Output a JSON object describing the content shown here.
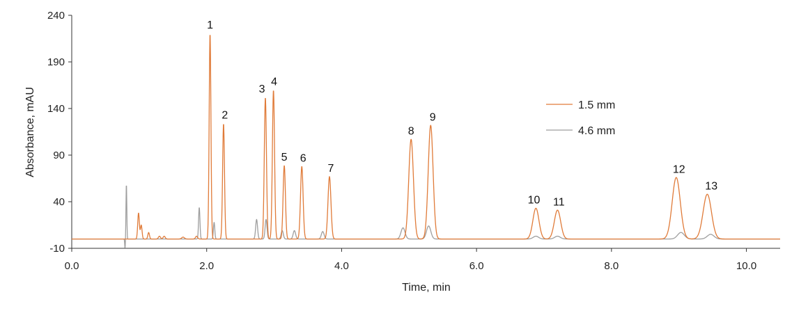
{
  "chart_data": {
    "type": "line",
    "xlabel": "Time, min",
    "ylabel": "Absorbance, mAU",
    "xlim": [
      0,
      10.5
    ],
    "ylim": [
      -10,
      240
    ],
    "x_ticks": [
      0,
      2,
      4,
      6,
      8,
      10
    ],
    "x_tick_labels": [
      "0.0",
      "2.0",
      "4.0",
      "6.0",
      "8.0",
      "10.0"
    ],
    "y_ticks": [
      -10,
      40,
      90,
      140,
      190,
      240
    ],
    "y_tick_labels": [
      "-10",
      "40",
      "90",
      "140",
      "190",
      "240"
    ],
    "grid": false,
    "legend_position": "right",
    "series": [
      {
        "name": "1.5 mm",
        "color": "#e07b39",
        "baseline": 0,
        "peaks": [
          {
            "t": 0.99,
            "h": 28,
            "w": 0.012
          },
          {
            "t": 1.03,
            "h": 15,
            "w": 0.012
          },
          {
            "t": 1.14,
            "h": 7,
            "w": 0.012
          },
          {
            "t": 1.3,
            "h": 3,
            "w": 0.015
          },
          {
            "t": 1.37,
            "h": 3,
            "w": 0.015
          },
          {
            "t": 1.65,
            "h": 2,
            "w": 0.02
          },
          {
            "t": 1.85,
            "h": 3,
            "w": 0.015
          },
          {
            "t": 2.05,
            "h": 221,
            "w": 0.013
          },
          {
            "t": 2.25,
            "h": 124,
            "w": 0.014
          },
          {
            "t": 2.87,
            "h": 152,
            "w": 0.016
          },
          {
            "t": 2.99,
            "h": 160,
            "w": 0.016
          },
          {
            "t": 3.15,
            "h": 79,
            "w": 0.017
          },
          {
            "t": 3.41,
            "h": 78,
            "w": 0.019
          },
          {
            "t": 3.82,
            "h": 67,
            "w": 0.022
          },
          {
            "t": 5.03,
            "h": 107,
            "w": 0.035
          },
          {
            "t": 5.32,
            "h": 122,
            "w": 0.036
          },
          {
            "t": 6.88,
            "h": 33,
            "w": 0.045
          },
          {
            "t": 7.2,
            "h": 31,
            "w": 0.047
          },
          {
            "t": 8.96,
            "h": 66,
            "w": 0.06
          },
          {
            "t": 9.42,
            "h": 48,
            "w": 0.062
          }
        ]
      },
      {
        "name": "4.6 mm",
        "color": "#9e9e9e",
        "baseline": 0,
        "peaks": [
          {
            "t": 0.81,
            "h": 60,
            "w": 0.006
          },
          {
            "t": 0.79,
            "h": -10,
            "w": 0.005
          },
          {
            "t": 1.89,
            "h": 34,
            "w": 0.01
          },
          {
            "t": 2.11,
            "h": 18,
            "w": 0.01
          },
          {
            "t": 2.74,
            "h": 21,
            "w": 0.014
          },
          {
            "t": 2.88,
            "h": 21,
            "w": 0.014
          },
          {
            "t": 3.12,
            "h": 9,
            "w": 0.016
          },
          {
            "t": 3.3,
            "h": 9,
            "w": 0.018
          },
          {
            "t": 3.72,
            "h": 8,
            "w": 0.02
          },
          {
            "t": 4.91,
            "h": 12,
            "w": 0.03
          },
          {
            "t": 5.29,
            "h": 14,
            "w": 0.032
          },
          {
            "t": 6.88,
            "h": 3,
            "w": 0.04
          },
          {
            "t": 7.2,
            "h": 3,
            "w": 0.042
          },
          {
            "t": 9.03,
            "h": 7,
            "w": 0.05
          },
          {
            "t": 9.47,
            "h": 5,
            "w": 0.05
          }
        ]
      }
    ],
    "annotations": [
      {
        "text": "1",
        "x": 2.05,
        "y": 226
      },
      {
        "text": "2",
        "x": 2.27,
        "y": 129
      },
      {
        "text": "3",
        "x": 2.82,
        "y": 157
      },
      {
        "text": "4",
        "x": 3.0,
        "y": 165
      },
      {
        "text": "5",
        "x": 3.15,
        "y": 84
      },
      {
        "text": "6",
        "x": 3.43,
        "y": 83
      },
      {
        "text": "7",
        "x": 3.84,
        "y": 72
      },
      {
        "text": "8",
        "x": 5.03,
        "y": 112
      },
      {
        "text": "9",
        "x": 5.35,
        "y": 127
      },
      {
        "text": "10",
        "x": 6.85,
        "y": 38
      },
      {
        "text": "11",
        "x": 7.22,
        "y": 36
      },
      {
        "text": "12",
        "x": 9.0,
        "y": 71
      },
      {
        "text": "13",
        "x": 9.48,
        "y": 53
      }
    ]
  }
}
